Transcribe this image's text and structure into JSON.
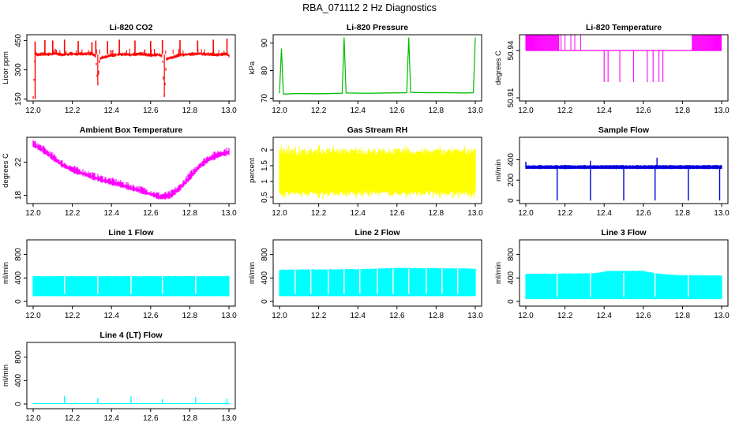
{
  "page": {
    "title": "RBA_071112  2 Hz Diagnostics"
  },
  "chart_data": [
    {
      "type": "line",
      "title": "Li-820 CO2",
      "ylabel": "Licor ppm",
      "xlim": [
        12.0,
        13.0
      ],
      "xticks": [
        "12.0",
        "12.2",
        "12.4",
        "12.6",
        "12.8",
        "13.0"
      ],
      "ylim": [
        140,
        480
      ],
      "yticks": [
        150,
        300,
        450
      ],
      "color": "#ff0000",
      "series": [
        {
          "x": [
            12.0,
            12.01,
            12.02,
            12.05,
            12.08,
            12.11,
            12.15,
            12.2,
            12.25,
            12.3,
            12.32,
            12.33,
            12.34,
            12.4,
            12.45,
            12.5,
            12.55,
            12.6,
            12.64,
            12.66,
            12.67,
            12.68,
            12.75,
            12.8,
            12.85,
            12.9,
            12.95,
            12.99,
            13.0
          ],
          "values": [
            155,
            390,
            378,
            382,
            380,
            385,
            378,
            383,
            380,
            384,
            370,
            220,
            360,
            375,
            380,
            378,
            382,
            376,
            378,
            372,
            160,
            355,
            378,
            380,
            383,
            380,
            378,
            382,
            372
          ]
        }
      ],
      "spikes_up": {
        "x": [
          12.01,
          12.06,
          12.1,
          12.16,
          12.23,
          12.3,
          12.32,
          12.38,
          12.44,
          12.52,
          12.6,
          12.66,
          12.75,
          12.84,
          12.92,
          12.99
        ],
        "values": [
          445,
          452,
          450,
          455,
          448,
          442,
          450,
          447,
          455,
          450,
          448,
          452,
          452,
          450,
          455,
          460
        ]
      }
    },
    {
      "type": "line",
      "title": "Li-820 Pressure",
      "ylabel": "kPa",
      "xlim": [
        12.0,
        13.0
      ],
      "xticks": [
        "12.0",
        "12.2",
        "12.4",
        "12.6",
        "12.8",
        "13.0"
      ],
      "ylim": [
        69,
        93
      ],
      "yticks": [
        70,
        80,
        90
      ],
      "color": "#00bb00",
      "series": [
        {
          "x": [
            12.0,
            12.01,
            12.02,
            12.1,
            12.2,
            12.32,
            12.33,
            12.34,
            12.45,
            12.55,
            12.65,
            12.66,
            12.67,
            12.75,
            12.85,
            12.95,
            12.99,
            13.0
          ],
          "values": [
            72,
            88,
            71.5,
            71.7,
            71.6,
            71.8,
            92,
            71.9,
            71.8,
            71.9,
            72.0,
            92,
            72.1,
            72.0,
            72.0,
            71.9,
            72.0,
            92
          ]
        }
      ]
    },
    {
      "type": "area",
      "title": "Li-820 Temperature",
      "ylabel": "degrees C",
      "xlim": [
        12.0,
        13.0
      ],
      "xticks": [
        "12.0",
        "12.2",
        "12.4",
        "12.6",
        "12.8",
        "13.0"
      ],
      "ylim": [
        50.908,
        50.95
      ],
      "yticks": [
        "50.91",
        "50.94"
      ],
      "color": "#ff00ff",
      "levels": [
        50.92,
        50.94
      ],
      "series": [
        {
          "name": "",
          "x_ranges": [
            [
              12.0,
              12.17
            ],
            [
              12.85,
              13.0
            ]
          ],
          "band": [
            50.94,
            50.95
          ]
        }
      ],
      "flicks_up_x": [
        12.18,
        12.2,
        12.23,
        12.25,
        12.28
      ],
      "flicks_down_x": [
        12.4,
        12.42,
        12.48,
        12.55,
        12.62,
        12.65,
        12.68,
        12.7
      ]
    },
    {
      "type": "area",
      "title": "Ambient Box Temperature",
      "ylabel": "degrees C",
      "xlim": [
        12.0,
        13.0
      ],
      "xticks": [
        "12.0",
        "12.2",
        "12.4",
        "12.6",
        "12.8",
        "13.0"
      ],
      "ylim": [
        17.0,
        25.0
      ],
      "yticks": [
        18,
        22
      ],
      "color": "#ff00ff",
      "series": [
        {
          "x": [
            12.0,
            12.05,
            12.1,
            12.15,
            12.2,
            12.25,
            12.3,
            12.35,
            12.4,
            12.45,
            12.5,
            12.55,
            12.6,
            12.65,
            12.7,
            12.75,
            12.8,
            12.85,
            12.9,
            12.95,
            13.0
          ],
          "low": [
            23.9,
            23.2,
            22.3,
            21.4,
            20.8,
            20.4,
            20.0,
            19.6,
            19.3,
            19.0,
            18.6,
            18.3,
            17.9,
            17.5,
            17.7,
            18.6,
            19.9,
            21.2,
            22.1,
            22.6,
            22.9
          ],
          "high": [
            24.5,
            23.8,
            22.9,
            22.0,
            21.4,
            21.0,
            20.6,
            20.2,
            19.9,
            19.6,
            19.2,
            18.9,
            18.5,
            18.1,
            18.3,
            19.2,
            20.6,
            21.9,
            22.8,
            23.3,
            23.6
          ]
        }
      ]
    },
    {
      "type": "area",
      "title": "Gas Stream RH",
      "ylabel": "percent",
      "xlim": [
        12.0,
        13.0
      ],
      "xticks": [
        "12.0",
        "12.2",
        "12.4",
        "12.6",
        "12.8",
        "13.0"
      ],
      "ylim": [
        0.3,
        2.4
      ],
      "yticks": [
        0.5,
        1.0,
        1.5,
        2.0
      ],
      "color": "#ffff00",
      "series": [
        {
          "x": [
            12.0,
            13.0
          ],
          "low": [
            0.6,
            0.6
          ],
          "high": [
            1.9,
            1.95
          ]
        }
      ],
      "spike_range": [
        0.45,
        2.15
      ]
    },
    {
      "type": "line",
      "title": "Sample Flow",
      "ylabel": "ml/min",
      "xlim": [
        12.0,
        13.0
      ],
      "xticks": [
        "12.0",
        "12.2",
        "12.4",
        "12.6",
        "12.8",
        "13.0"
      ],
      "ylim": [
        -30,
        620
      ],
      "yticks": [
        0,
        200,
        400
      ],
      "color": "#0000dd",
      "series": [
        {
          "x": [
            12.0,
            13.0
          ],
          "low": [
            310,
            310
          ],
          "high": [
            345,
            345
          ]
        }
      ],
      "spikes_up": {
        "x": [
          12.0,
          12.33,
          12.67
        ],
        "values": [
          380,
          390,
          420
        ]
      },
      "spikes_down": {
        "x": [
          12.16,
          12.33,
          12.5,
          12.66,
          12.83,
          12.99
        ],
        "values": [
          0,
          0,
          0,
          0,
          0,
          0
        ]
      }
    },
    {
      "type": "area",
      "title": "Line 1 Flow",
      "ylabel": "ml/min",
      "xlim": [
        12.0,
        13.0
      ],
      "xticks": [
        "12.0",
        "12.2",
        "12.4",
        "12.6",
        "12.8",
        "13.0"
      ],
      "ylim": [
        -80,
        1050
      ],
      "yticks": [
        0,
        400,
        800
      ],
      "color": "#00ffff",
      "series": [
        {
          "x": [
            12.0,
            13.0
          ],
          "low": [
            90,
            90
          ],
          "high": [
            430,
            430
          ]
        }
      ],
      "gaps_x": [
        12.16,
        12.33,
        12.5,
        12.66,
        12.83
      ]
    },
    {
      "type": "area",
      "title": "Line 2 Flow",
      "ylabel": "ml/min",
      "xlim": [
        12.0,
        13.0
      ],
      "xticks": [
        "12.0",
        "12.2",
        "12.4",
        "12.6",
        "12.8",
        "13.0"
      ],
      "ylim": [
        -80,
        1050
      ],
      "yticks": [
        0,
        400,
        800
      ],
      "color": "#00ffff",
      "series": [
        {
          "x": [
            12.0,
            12.4,
            12.6,
            13.0
          ],
          "low": [
            90,
            90,
            90,
            90
          ],
          "high": [
            540,
            550,
            570,
            560
          ]
        }
      ],
      "gaps_x": [
        12.08,
        12.16,
        12.25,
        12.33,
        12.41,
        12.5,
        12.58,
        12.66,
        12.75,
        12.83,
        12.91
      ]
    },
    {
      "type": "area",
      "title": "Line 3 Flow",
      "ylabel": "ml/min",
      "xlim": [
        12.0,
        13.0
      ],
      "xticks": [
        "12.0",
        "12.2",
        "12.4",
        "12.6",
        "12.8",
        "13.0"
      ],
      "ylim": [
        -80,
        1050
      ],
      "yticks": [
        0,
        400,
        800
      ],
      "color": "#00ffff",
      "series": [
        {
          "x": [
            12.0,
            12.35,
            12.42,
            12.6,
            12.66,
            12.75,
            13.0
          ],
          "low": [
            40,
            40,
            40,
            40,
            40,
            40,
            40
          ],
          "high": [
            470,
            480,
            520,
            520,
            480,
            450,
            440
          ]
        }
      ],
      "gaps_x": [
        12.16,
        12.33,
        12.5,
        12.66,
        12.83
      ]
    },
    {
      "type": "line",
      "title": "Line 4 (LT) Flow",
      "ylabel": "ml/min",
      "xlim": [
        12.0,
        13.0
      ],
      "xticks": [
        "12.0",
        "12.2",
        "12.4",
        "12.6",
        "12.8",
        "13.0"
      ],
      "ylim": [
        -80,
        1050
      ],
      "yticks": [
        0,
        400,
        800
      ],
      "color": "#00ffff",
      "series": [
        {
          "x": [
            12.0,
            13.0
          ],
          "low": [
            0,
            0
          ],
          "high": [
            15,
            15
          ]
        }
      ],
      "spikes_up": {
        "x": [
          12.16,
          12.33,
          12.5,
          12.66,
          12.83,
          12.99
        ],
        "values": [
          140,
          100,
          130,
          80,
          120,
          90
        ]
      }
    }
  ]
}
